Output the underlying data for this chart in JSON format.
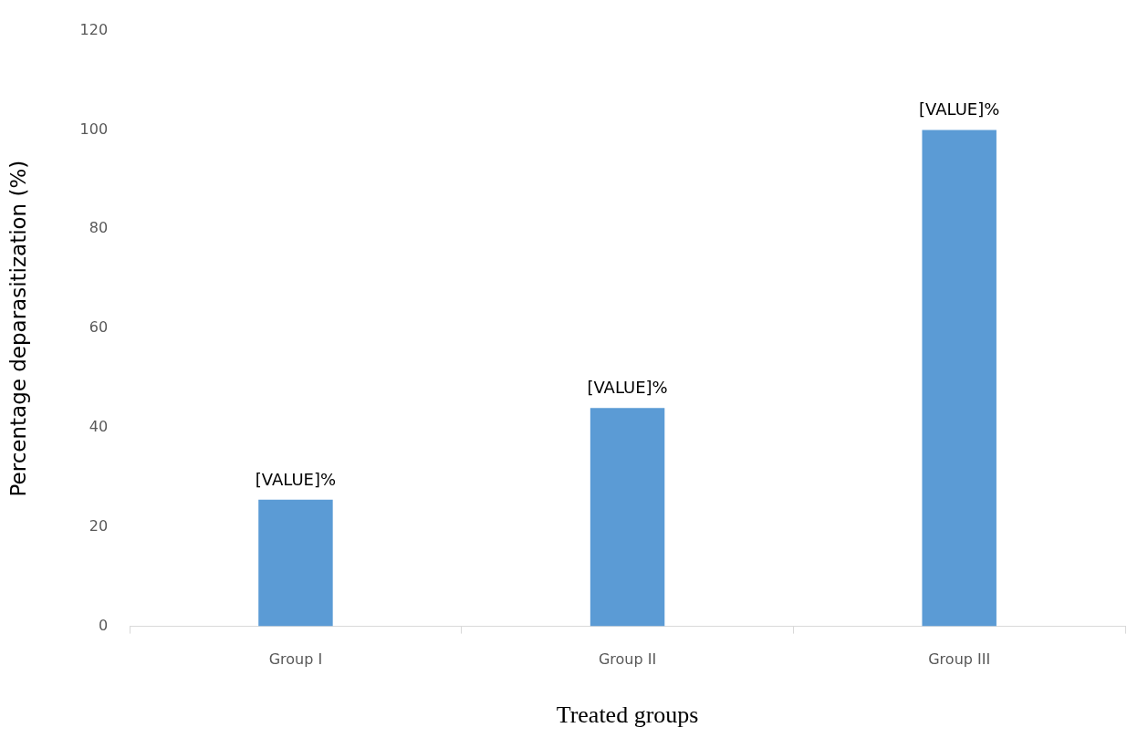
{
  "chart_data": {
    "type": "bar",
    "xlabel": "Treated groups",
    "ylabel": "Percentage deparasitization (%)",
    "categories": [
      "Group I",
      "Group II",
      "Group III"
    ],
    "values": [
      25.5,
      44,
      100
    ],
    "value_labels": [
      "[VALUE]%",
      "[VALUE]%",
      "[VALUE]%"
    ],
    "color": "#5b9bd5",
    "ylim": [
      0,
      120
    ],
    "yticks": [
      0,
      20,
      40,
      60,
      80,
      100,
      120
    ],
    "grid": false,
    "legend": false
  }
}
